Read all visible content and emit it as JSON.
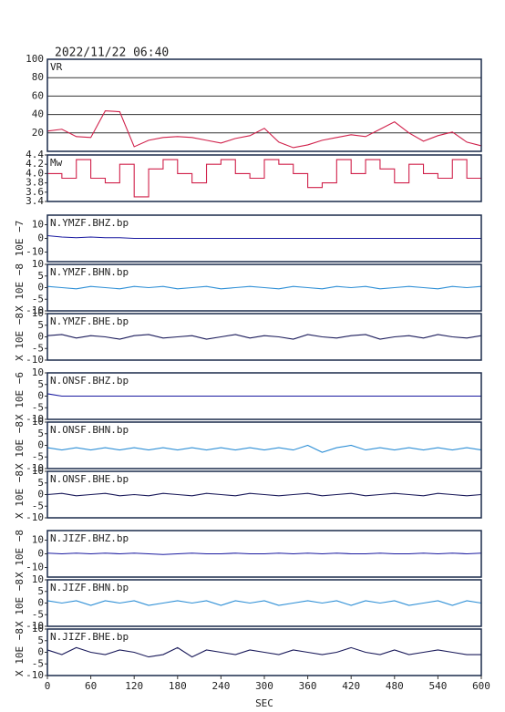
{
  "chart_data": [
    {
      "type": "line",
      "title": "2022/11/22 06:40",
      "label": "VR",
      "color": "#d0204a",
      "grid": true,
      "x": [
        0,
        20,
        40,
        60,
        80,
        100,
        120,
        140,
        160,
        180,
        200,
        220,
        240,
        260,
        280,
        300,
        320,
        340,
        360,
        380,
        400,
        420,
        440,
        460,
        480,
        500,
        520,
        540,
        560,
        580,
        600
      ],
      "values": [
        22,
        24,
        16,
        15,
        44,
        43,
        5,
        12,
        15,
        16,
        15,
        12,
        9,
        14,
        17,
        25,
        10,
        4,
        7,
        12,
        15,
        18,
        16,
        24,
        32,
        20,
        11,
        17,
        21,
        10,
        6
      ],
      "xlim": [
        0,
        600
      ],
      "ylim": [
        0,
        100
      ],
      "yticks": [
        20,
        40,
        60,
        80,
        100
      ]
    },
    {
      "type": "line",
      "label": "Mw",
      "color": "#d0204a",
      "grid": false,
      "step": true,
      "x": [
        0,
        20,
        40,
        60,
        80,
        100,
        120,
        140,
        160,
        180,
        200,
        220,
        240,
        260,
        280,
        300,
        320,
        340,
        360,
        380,
        400,
        420,
        440,
        460,
        480,
        500,
        520,
        540,
        560,
        580,
        600
      ],
      "values": [
        4.0,
        3.9,
        4.3,
        3.9,
        3.8,
        4.2,
        3.5,
        4.1,
        4.3,
        4.0,
        3.8,
        4.2,
        4.3,
        4.0,
        3.9,
        4.3,
        4.2,
        4.0,
        3.7,
        3.8,
        4.3,
        4.0,
        4.3,
        4.1,
        3.8,
        4.2,
        4.0,
        3.9,
        4.3,
        3.9,
        3.9
      ],
      "xlim": [
        0,
        600
      ],
      "ylim": [
        3.4,
        4.4
      ],
      "yticks": [
        3.4,
        3.6,
        3.8,
        {
          "value": 4,
          "label": "4.0"
        },
        4.2,
        4.4
      ]
    },
    {
      "type": "line",
      "label": "N.YMZF.BHZ.bp",
      "unit_label": "10E −7",
      "color": "#1a1aa0",
      "grid": false,
      "x": [
        0,
        20,
        40,
        60,
        80,
        100,
        120,
        140,
        160,
        180,
        200,
        220,
        240,
        260,
        280,
        300,
        320,
        340,
        360,
        380,
        400,
        420,
        440,
        460,
        480,
        500,
        520,
        540,
        560,
        580,
        600
      ],
      "values": [
        2,
        1,
        0.5,
        1,
        0.5,
        0.5,
        0,
        0,
        0,
        0,
        0,
        0,
        0,
        0,
        0,
        0,
        0,
        0,
        0,
        0,
        0,
        0,
        0,
        0,
        0,
        0,
        0,
        0,
        0,
        0,
        0
      ],
      "xlim": [
        0,
        600
      ],
      "ylim": [
        -17,
        17
      ],
      "yticks": [
        -10,
        0,
        10
      ]
    },
    {
      "type": "line",
      "label": "N.YMZF.BHN.bp",
      "unit_label": "X 10E −8",
      "color": "#2e8fd6",
      "grid": false,
      "x": [
        0,
        20,
        40,
        60,
        80,
        100,
        120,
        140,
        160,
        180,
        200,
        220,
        240,
        260,
        280,
        300,
        320,
        340,
        360,
        380,
        400,
        420,
        440,
        460,
        480,
        500,
        520,
        540,
        560,
        580,
        600
      ],
      "values": [
        0.5,
        0,
        -0.5,
        0.5,
        0,
        -0.5,
        0.5,
        0,
        0.5,
        -0.5,
        0,
        0.5,
        -0.5,
        0,
        0.5,
        0,
        -0.5,
        0.5,
        0,
        -0.5,
        0.5,
        0,
        0.5,
        -0.5,
        0,
        0.5,
        0,
        -0.5,
        0.5,
        0,
        0.5
      ],
      "xlim": [
        0,
        600
      ],
      "ylim": [
        -10,
        10
      ],
      "yticks": [
        -10,
        -5,
        0,
        5,
        10
      ]
    },
    {
      "type": "line",
      "label": "N.YMZF.BHE.bp",
      "unit_label": "X 10E −8",
      "color": "#1a1a5a",
      "grid": false,
      "x": [
        0,
        20,
        40,
        60,
        80,
        100,
        120,
        140,
        160,
        180,
        200,
        220,
        240,
        260,
        280,
        300,
        320,
        340,
        360,
        380,
        400,
        420,
        440,
        460,
        480,
        500,
        520,
        540,
        560,
        580,
        600
      ],
      "values": [
        0.5,
        1,
        -0.5,
        0.5,
        0,
        -1,
        0.5,
        1,
        -0.5,
        0,
        0.5,
        -1,
        0,
        1,
        -0.5,
        0.5,
        0,
        -1,
        1,
        0,
        -0.5,
        0.5,
        1,
        -1,
        0,
        0.5,
        -0.5,
        1,
        0,
        -0.5,
        0.5
      ],
      "xlim": [
        0,
        600
      ],
      "ylim": [
        -10,
        10
      ],
      "yticks": [
        -10,
        -5,
        0,
        5,
        10
      ]
    },
    {
      "type": "line",
      "label": "N.ONSF.BHZ.bp",
      "unit_label": "X 10E −6",
      "color": "#1a1aa0",
      "grid": false,
      "x": [
        0,
        20,
        40,
        60,
        80,
        100,
        120,
        140,
        160,
        180,
        200,
        220,
        240,
        260,
        280,
        300,
        320,
        340,
        360,
        380,
        400,
        420,
        440,
        460,
        480,
        500,
        520,
        540,
        560,
        580,
        600
      ],
      "values": [
        1,
        0,
        0,
        0,
        0,
        0,
        0,
        0,
        0,
        0,
        0,
        0,
        0,
        0,
        0,
        0,
        0,
        0,
        0,
        0,
        0,
        0,
        0,
        0,
        0,
        0,
        0,
        0,
        0,
        0,
        0
      ],
      "xlim": [
        0,
        600
      ],
      "ylim": [
        -10,
        10
      ],
      "yticks": [
        -10,
        -5,
        0,
        5,
        10
      ]
    },
    {
      "type": "line",
      "label": "N.ONSF.BHN.bp",
      "unit_label": "X 10E −8",
      "color": "#2e8fd6",
      "grid": false,
      "x": [
        0,
        20,
        40,
        60,
        80,
        100,
        120,
        140,
        160,
        180,
        200,
        220,
        240,
        260,
        280,
        300,
        320,
        340,
        360,
        380,
        400,
        420,
        440,
        460,
        480,
        500,
        520,
        540,
        560,
        580,
        600
      ],
      "values": [
        -1,
        -2,
        -1,
        -2,
        -1,
        -2,
        -1,
        -2,
        -1,
        -2,
        -1,
        -2,
        -1,
        -2,
        -1,
        -2,
        -1,
        -2,
        0,
        -3,
        -1,
        0,
        -2,
        -1,
        -2,
        -1,
        -2,
        -1,
        -2,
        -1,
        -2
      ],
      "xlim": [
        0,
        600
      ],
      "ylim": [
        -10,
        10
      ],
      "yticks": [
        -10,
        -5,
        0,
        5,
        10
      ]
    },
    {
      "type": "line",
      "label": "N.ONSF.BHE.bp",
      "unit_label": "X 10E −8",
      "color": "#1a1a5a",
      "grid": false,
      "x": [
        0,
        20,
        40,
        60,
        80,
        100,
        120,
        140,
        160,
        180,
        200,
        220,
        240,
        260,
        280,
        300,
        320,
        340,
        360,
        380,
        400,
        420,
        440,
        460,
        480,
        500,
        520,
        540,
        560,
        580,
        600
      ],
      "values": [
        0,
        0.5,
        -0.5,
        0,
        0.5,
        -0.5,
        0,
        -0.5,
        0.5,
        0,
        -0.5,
        0.5,
        0,
        -0.5,
        0.5,
        0,
        -0.5,
        0,
        0.5,
        -0.5,
        0,
        0.5,
        -0.5,
        0,
        0.5,
        0,
        -0.5,
        0.5,
        0,
        -0.5,
        0
      ],
      "xlim": [
        0,
        600
      ],
      "ylim": [
        -10,
        10
      ],
      "yticks": [
        -10,
        -5,
        0,
        5,
        10
      ]
    },
    {
      "type": "line",
      "label": "N.JIZF.BHZ.bp",
      "unit_label": "X 10E −8",
      "color": "#1a1aa0",
      "grid": false,
      "x": [
        0,
        20,
        40,
        60,
        80,
        100,
        120,
        140,
        160,
        180,
        200,
        220,
        240,
        260,
        280,
        300,
        320,
        340,
        360,
        380,
        400,
        420,
        440,
        460,
        480,
        500,
        520,
        540,
        560,
        580,
        600
      ],
      "values": [
        0.5,
        0,
        0.5,
        0,
        0.5,
        0,
        0.5,
        0,
        -0.5,
        0,
        0.5,
        0,
        0,
        0.5,
        0,
        0,
        0.5,
        0,
        0.5,
        0,
        0.5,
        0,
        0,
        0.5,
        0,
        0,
        0.5,
        0,
        0.5,
        0,
        0.5
      ],
      "xlim": [
        0,
        600
      ],
      "ylim": [
        -17,
        17
      ],
      "yticks": [
        -10,
        0,
        10
      ]
    },
    {
      "type": "line",
      "label": "N.JIZF.BHN.bp",
      "unit_label": "X 10E −8",
      "color": "#2e8fd6",
      "grid": false,
      "x": [
        0,
        20,
        40,
        60,
        80,
        100,
        120,
        140,
        160,
        180,
        200,
        220,
        240,
        260,
        280,
        300,
        320,
        340,
        360,
        380,
        400,
        420,
        440,
        460,
        480,
        500,
        520,
        540,
        560,
        580,
        600
      ],
      "values": [
        1,
        0,
        1,
        -1,
        1,
        0,
        1,
        -1,
        0,
        1,
        0,
        1,
        -1,
        1,
        0,
        1,
        -1,
        0,
        1,
        0,
        1,
        -1,
        1,
        0,
        1,
        -1,
        0,
        1,
        -1,
        1,
        0
      ],
      "xlim": [
        0,
        600
      ],
      "ylim": [
        -10,
        10
      ],
      "yticks": [
        -10,
        -5,
        0,
        5,
        10
      ]
    },
    {
      "type": "line",
      "label": "N.JIZF.BHE.bp",
      "unit_label": "X 10E −8",
      "color": "#1a1a5a",
      "grid": false,
      "x": [
        0,
        20,
        40,
        60,
        80,
        100,
        120,
        140,
        160,
        180,
        200,
        220,
        240,
        260,
        280,
        300,
        320,
        340,
        360,
        380,
        400,
        420,
        440,
        460,
        480,
        500,
        520,
        540,
        560,
        580,
        600
      ],
      "values": [
        1,
        -1,
        2,
        0,
        -1,
        1,
        0,
        -2,
        -1,
        2,
        -2,
        1,
        0,
        -1,
        1,
        0,
        -1,
        1,
        0,
        -1,
        0,
        2,
        0,
        -1,
        1,
        -1,
        0,
        1,
        0,
        -1,
        -1
      ],
      "xlim": [
        0,
        600
      ],
      "ylim": [
        -10,
        10
      ],
      "yticks": [
        -10,
        -5,
        0,
        5,
        10
      ],
      "xlabel": "SEC",
      "xticks": [
        0,
        60,
        120,
        180,
        240,
        300,
        360,
        420,
        480,
        540,
        600
      ]
    }
  ]
}
